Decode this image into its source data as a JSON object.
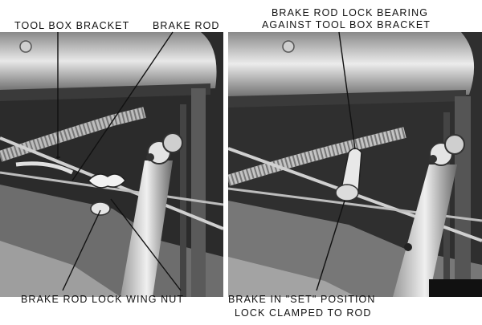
{
  "left_photo": {
    "label_tool_box_bracket": "TOOL BOX BRACKET",
    "label_brake_rod": "BRAKE ROD",
    "label_lock_wing_nut": "BRAKE ROD LOCK WING NUT"
  },
  "right_photo": {
    "label_bearing_line1": "BRAKE ROD LOCK BEARING",
    "label_bearing_line2": "AGAINST TOOL BOX BRACKET",
    "label_set_line1": "BRAKE IN \"SET\" POSITION",
    "label_set_line2": "LOCK CLAMPED TO ROD"
  }
}
